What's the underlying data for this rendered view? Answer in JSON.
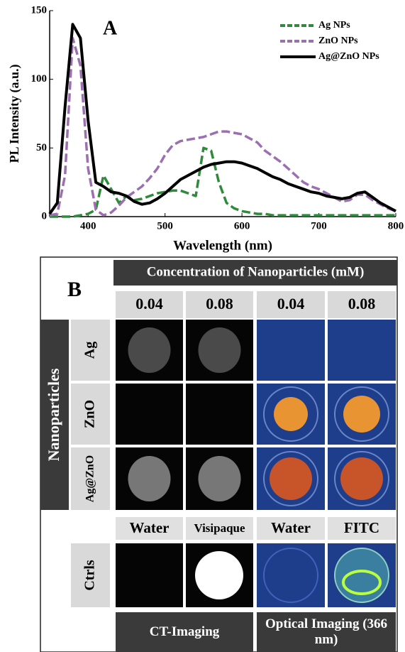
{
  "chart_data": {
    "type": "line",
    "panel_label": "A",
    "xlabel": "Wavelength (nm)",
    "ylabel": "PL Intensity (a.u.)",
    "x": [
      350,
      360,
      370,
      380,
      390,
      400,
      410,
      420,
      430,
      440,
      450,
      460,
      470,
      480,
      490,
      500,
      510,
      520,
      530,
      540,
      550,
      560,
      570,
      580,
      590,
      600,
      610,
      620,
      630,
      640,
      650,
      660,
      670,
      680,
      690,
      700,
      710,
      720,
      730,
      740,
      750,
      760,
      770,
      780,
      790,
      800
    ],
    "series": [
      {
        "name": "Ag NPs",
        "color": "#2e8b3a",
        "dashed": true,
        "values": [
          0,
          0,
          0,
          0,
          1,
          2,
          5,
          30,
          20,
          10,
          15,
          12,
          13,
          15,
          17,
          18,
          19,
          19,
          17,
          15,
          50,
          48,
          25,
          10,
          6,
          4,
          3,
          2,
          2,
          1,
          1,
          1,
          1,
          1,
          1,
          1,
          1,
          1,
          1,
          1,
          1,
          1,
          1,
          1,
          1,
          1
        ]
      },
      {
        "name": "ZnO NPs",
        "color": "#9b6fb0",
        "dashed": true,
        "values": [
          1,
          2,
          30,
          130,
          110,
          35,
          5,
          1,
          3,
          8,
          14,
          18,
          22,
          28,
          35,
          45,
          52,
          55,
          56,
          57,
          58,
          60,
          62,
          62,
          61,
          60,
          57,
          54,
          48,
          44,
          40,
          35,
          30,
          25,
          22,
          20,
          17,
          14,
          11,
          12,
          16,
          16,
          12,
          9,
          6,
          4
        ]
      },
      {
        "name": "Ag@ZnO NPs",
        "color": "#000000",
        "dashed": false,
        "values": [
          2,
          10,
          80,
          140,
          130,
          70,
          25,
          22,
          18,
          17,
          15,
          11,
          9,
          10,
          13,
          17,
          22,
          27,
          30,
          33,
          36,
          38,
          39,
          40,
          40,
          39,
          37,
          35,
          32,
          29,
          27,
          24,
          22,
          20,
          18,
          17,
          15,
          14,
          13,
          14,
          17,
          18,
          14,
          10,
          7,
          4
        ]
      }
    ],
    "xlim": [
      350,
      800
    ],
    "ylim": [
      0,
      150
    ],
    "xticks": [
      400,
      500,
      600,
      700,
      800
    ],
    "yticks": [
      0,
      50,
      100,
      150
    ],
    "grid": false,
    "legend": "upper right"
  },
  "panel_b": {
    "label": "B",
    "header": "Concentration of Nanoparticles (mM)",
    "columns": [
      "0.04",
      "0.08",
      "0.04",
      "0.08"
    ],
    "row_group": "Nanoparticles",
    "rows": [
      "Ag",
      "ZnO",
      "Ag@ZnO"
    ],
    "controls": {
      "label": "Ctrls",
      "columns": [
        "Water",
        "Visipaque",
        "Water",
        "FITC"
      ]
    },
    "footer": [
      "CT-Imaging",
      "Optical Imaging (366 nm)"
    ]
  }
}
